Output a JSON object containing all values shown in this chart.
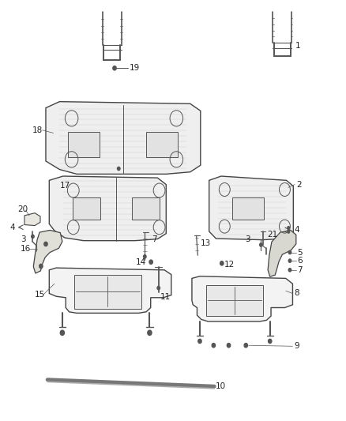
{
  "title": "",
  "bg_color": "#ffffff",
  "fig_width": 4.38,
  "fig_height": 5.33,
  "dpi": 100,
  "line_color": "#555555",
  "label_fontsize": 7.5,
  "label_color": "#222222"
}
